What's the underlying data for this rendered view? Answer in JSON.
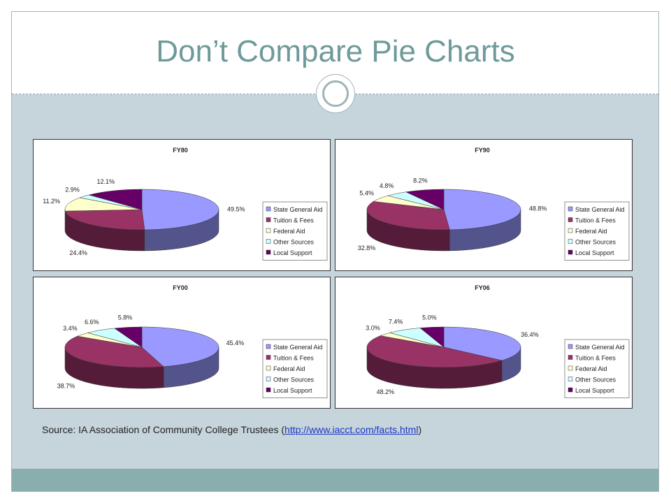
{
  "slide": {
    "title": "Don’t Compare Pie Charts",
    "source_prefix": "Source: IA Association of Community College Trustees (",
    "source_link": "http://www.iacct.com/facts.html",
    "source_suffix": ")"
  },
  "colors": {
    "title": "#6f9a9a",
    "background": "#c6d4db",
    "band": "#8aadad"
  },
  "chart_data": [
    {
      "type": "pie",
      "title": "FY80",
      "categories": [
        "State General Aid",
        "Tuition & Fees",
        "Federal Aid",
        "Other Sources",
        "Local Support"
      ],
      "values": [
        49.5,
        24.4,
        11.2,
        2.9,
        12.1
      ],
      "labels": [
        "49.5%",
        "24.4%",
        "11.2%",
        "2.9%",
        "12.1%"
      ],
      "colors": [
        "#9999ff",
        "#993366",
        "#ffffcc",
        "#ccffff",
        "#660066"
      ],
      "legend": "right",
      "style": "3d"
    },
    {
      "type": "pie",
      "title": "FY90",
      "categories": [
        "State General Aid",
        "Tuition & Fees",
        "Federal Aid",
        "Other Sources",
        "Local Support"
      ],
      "values": [
        48.8,
        32.8,
        5.4,
        4.8,
        8.2
      ],
      "labels": [
        "48.8%",
        "32.8%",
        "5.4%",
        "4.8%",
        "8.2%"
      ],
      "colors": [
        "#9999ff",
        "#993366",
        "#ffffcc",
        "#ccffff",
        "#660066"
      ],
      "legend": "right",
      "style": "3d"
    },
    {
      "type": "pie",
      "title": "FY00",
      "categories": [
        "State General Aid",
        "Tuition & Fees",
        "Federal Aid",
        "Other Sources",
        "Local Support"
      ],
      "values": [
        45.4,
        38.7,
        3.4,
        6.6,
        5.8
      ],
      "labels": [
        "45.4%",
        "38.7%",
        "3.4%",
        "6.6%",
        "5.8%"
      ],
      "colors": [
        "#9999ff",
        "#993366",
        "#ffffcc",
        "#ccffff",
        "#660066"
      ],
      "legend": "right",
      "style": "3d"
    },
    {
      "type": "pie",
      "title": "FY06",
      "categories": [
        "State General Aid",
        "Tuition & Fees",
        "Federal Aid",
        "Other Sources",
        "Local Support"
      ],
      "values": [
        36.4,
        48.2,
        3.0,
        7.4,
        5.0
      ],
      "labels": [
        "36.4%",
        "48.2%",
        "3.0%",
        "7.4%",
        "5.0%"
      ],
      "colors": [
        "#9999ff",
        "#993366",
        "#ffffcc",
        "#ccffff",
        "#660066"
      ],
      "legend": "right",
      "style": "3d"
    }
  ]
}
